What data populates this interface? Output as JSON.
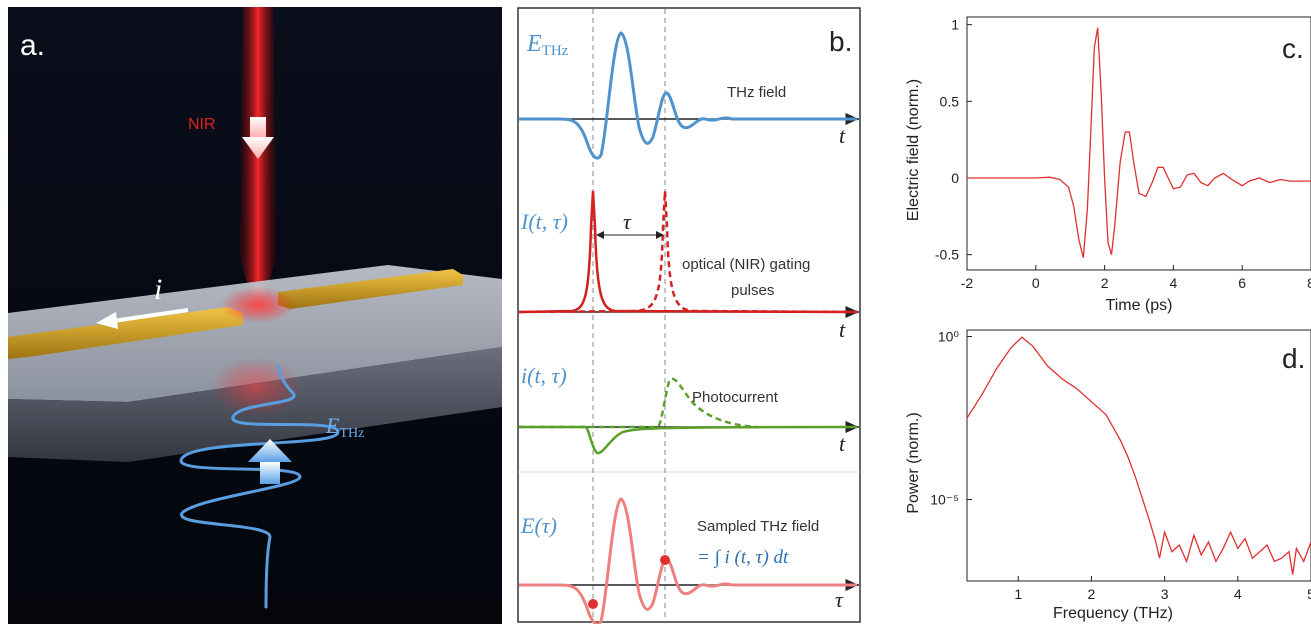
{
  "panel_a": {
    "letter": "a.",
    "nir_label": "NIR",
    "current_symbol": "i",
    "field_symbol_main": "E",
    "field_symbol_sub": "THz",
    "colors": {
      "background": "#070b16",
      "beam": "#e01010",
      "electrode": "#d8a920",
      "wave": "#4a90d8"
    }
  },
  "panel_b": {
    "letter": "b.",
    "rows": [
      {
        "symbol_main": "E",
        "symbol_sub": "THz",
        "caption": "THz field",
        "axis": "t"
      },
      {
        "symbol": "I(t, τ)",
        "delay_symbol": "τ",
        "caption_line1": "optical (NIR) gating",
        "caption_line2": "pulses",
        "axis": "t"
      },
      {
        "symbol": "i(t, τ)",
        "caption": "Photocurrent",
        "axis": "t"
      },
      {
        "symbol": "E(τ)",
        "caption": "Sampled THz field",
        "formula": "= ∫ i (t, τ) dt",
        "axis": "τ"
      }
    ],
    "colors": {
      "thz": "#4f93cc",
      "gate": "#d42020",
      "photocurrent": "#5aa02a",
      "sampled": "#ef8080"
    }
  },
  "chart_data": [
    {
      "panel": "c.",
      "type": "line",
      "title": "",
      "xlabel": "Time (ps)",
      "ylabel": "Electric field  (norm.)",
      "xlim": [
        -2,
        8
      ],
      "ylim": [
        -0.6,
        1.05
      ],
      "xticks": [
        -2,
        0,
        2,
        4,
        6,
        8
      ],
      "yticks": [
        -0.5,
        0,
        0.5,
        1
      ],
      "ytick_labels": [
        "-0.5",
        "0",
        "0.5",
        "1"
      ],
      "color": "#e03030",
      "series": [
        {
          "x": [
            -2.0,
            -1.5,
            -1.0,
            -0.5,
            0.0,
            0.4,
            0.7,
            0.95,
            1.1,
            1.25,
            1.38,
            1.5,
            1.6,
            1.7,
            1.8,
            1.9,
            2.0,
            2.1,
            2.2,
            2.3,
            2.45,
            2.6,
            2.72,
            2.85,
            3.0,
            3.2,
            3.4,
            3.55,
            3.7,
            3.85,
            4.0,
            4.2,
            4.4,
            4.6,
            4.8,
            5.0,
            5.2,
            5.45,
            5.7,
            6.0,
            6.2,
            6.5,
            6.8,
            7.1,
            7.4,
            7.7,
            8.0
          ],
          "y": [
            0.0,
            0.0,
            0.0,
            0.0,
            0.0,
            0.005,
            -0.01,
            -0.06,
            -0.18,
            -0.4,
            -0.52,
            -0.2,
            0.3,
            0.85,
            0.98,
            0.55,
            0.0,
            -0.42,
            -0.5,
            -0.3,
            0.1,
            0.3,
            0.3,
            0.1,
            -0.1,
            -0.12,
            -0.02,
            0.07,
            0.07,
            0.0,
            -0.07,
            -0.06,
            0.02,
            0.03,
            -0.03,
            -0.05,
            0.0,
            0.03,
            -0.01,
            -0.05,
            -0.02,
            0.0,
            -0.03,
            -0.01,
            -0.02,
            -0.02,
            -0.02
          ]
        }
      ]
    },
    {
      "panel": "d.",
      "type": "line",
      "title": "",
      "xlabel": "Frequency (THz)",
      "ylabel": "Power  (norm.)",
      "xlim": [
        0.3,
        5
      ],
      "ylim_log10": [
        -7.5,
        0.2
      ],
      "log_y": true,
      "xticks": [
        1,
        2,
        3,
        4,
        5
      ],
      "yticks_log10": [
        0,
        -5
      ],
      "ytick_labels": [
        "10⁰",
        "10⁻⁵"
      ],
      "color": "#e03030",
      "series": [
        {
          "x": [
            0.3,
            0.5,
            0.7,
            0.9,
            1.05,
            1.2,
            1.4,
            1.6,
            1.8,
            2.0,
            2.1,
            2.2,
            2.3,
            2.4,
            2.5,
            2.6,
            2.7,
            2.8,
            2.88,
            2.93,
            3.0,
            3.1,
            3.2,
            3.3,
            3.4,
            3.5,
            3.6,
            3.7,
            3.8,
            3.9,
            4.0,
            4.1,
            4.2,
            4.3,
            4.4,
            4.5,
            4.6,
            4.7,
            4.75,
            4.8,
            4.9,
            5.0
          ],
          "y_log10": [
            -2.5,
            -1.8,
            -1.0,
            -0.35,
            -0.02,
            -0.3,
            -0.9,
            -1.3,
            -1.6,
            -2.0,
            -2.2,
            -2.4,
            -2.8,
            -3.2,
            -3.7,
            -4.3,
            -5.0,
            -5.7,
            -6.3,
            -6.8,
            -6.0,
            -6.6,
            -6.4,
            -6.9,
            -6.1,
            -6.7,
            -6.3,
            -6.9,
            -6.5,
            -6.0,
            -6.5,
            -6.2,
            -6.8,
            -6.6,
            -6.4,
            -6.9,
            -6.8,
            -6.6,
            -7.3,
            -6.5,
            -6.9,
            -6.3
          ]
        }
      ]
    }
  ]
}
